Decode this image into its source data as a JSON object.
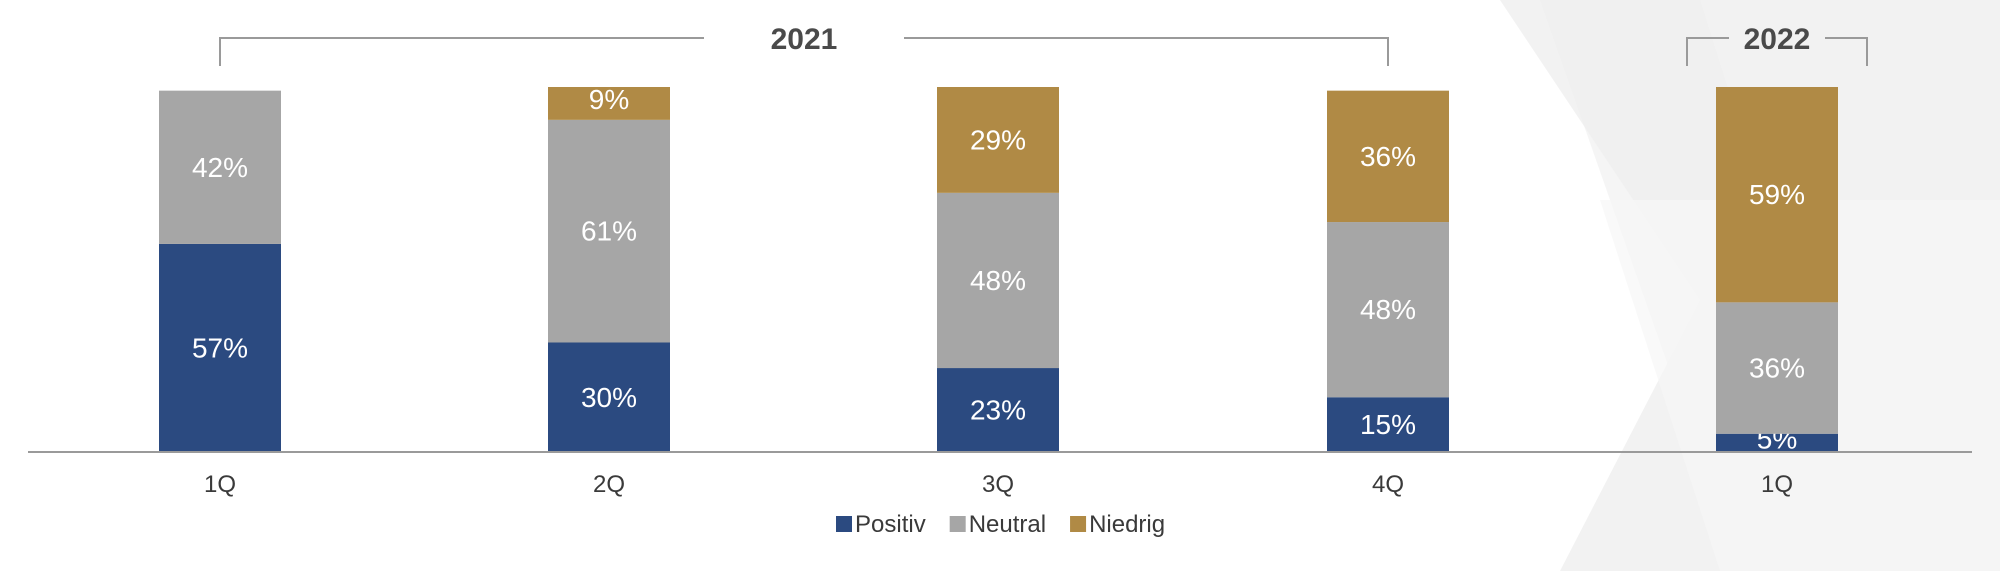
{
  "chart_data": {
    "type": "bar",
    "stacked": "percent",
    "categories": [
      "1Q",
      "2Q",
      "3Q",
      "4Q",
      "1Q"
    ],
    "groups": [
      {
        "label": "2021",
        "categories": [
          0,
          1,
          2,
          3
        ]
      },
      {
        "label": "2022",
        "categories": [
          4
        ]
      }
    ],
    "series": [
      {
        "name": "Positiv",
        "color": "#2b4a80",
        "values": [
          57,
          30,
          23,
          15,
          5
        ]
      },
      {
        "name": "Neutral",
        "color": "#a6a6a6",
        "values": [
          42,
          61,
          48,
          48,
          36
        ]
      },
      {
        "name": "Niedrig",
        "color": "#b08a45",
        "values": [
          0,
          9,
          29,
          36,
          59
        ]
      }
    ],
    "value_labels": [
      [
        "57%",
        "30%",
        "23%",
        "15%",
        "5%"
      ],
      [
        "42%",
        "61%",
        "48%",
        "48%",
        "36%"
      ],
      [
        "",
        "9%",
        "29%",
        "36%",
        "59%"
      ]
    ],
    "ylim": [
      0,
      100
    ],
    "grid": false,
    "legend_position": "bottom"
  }
}
